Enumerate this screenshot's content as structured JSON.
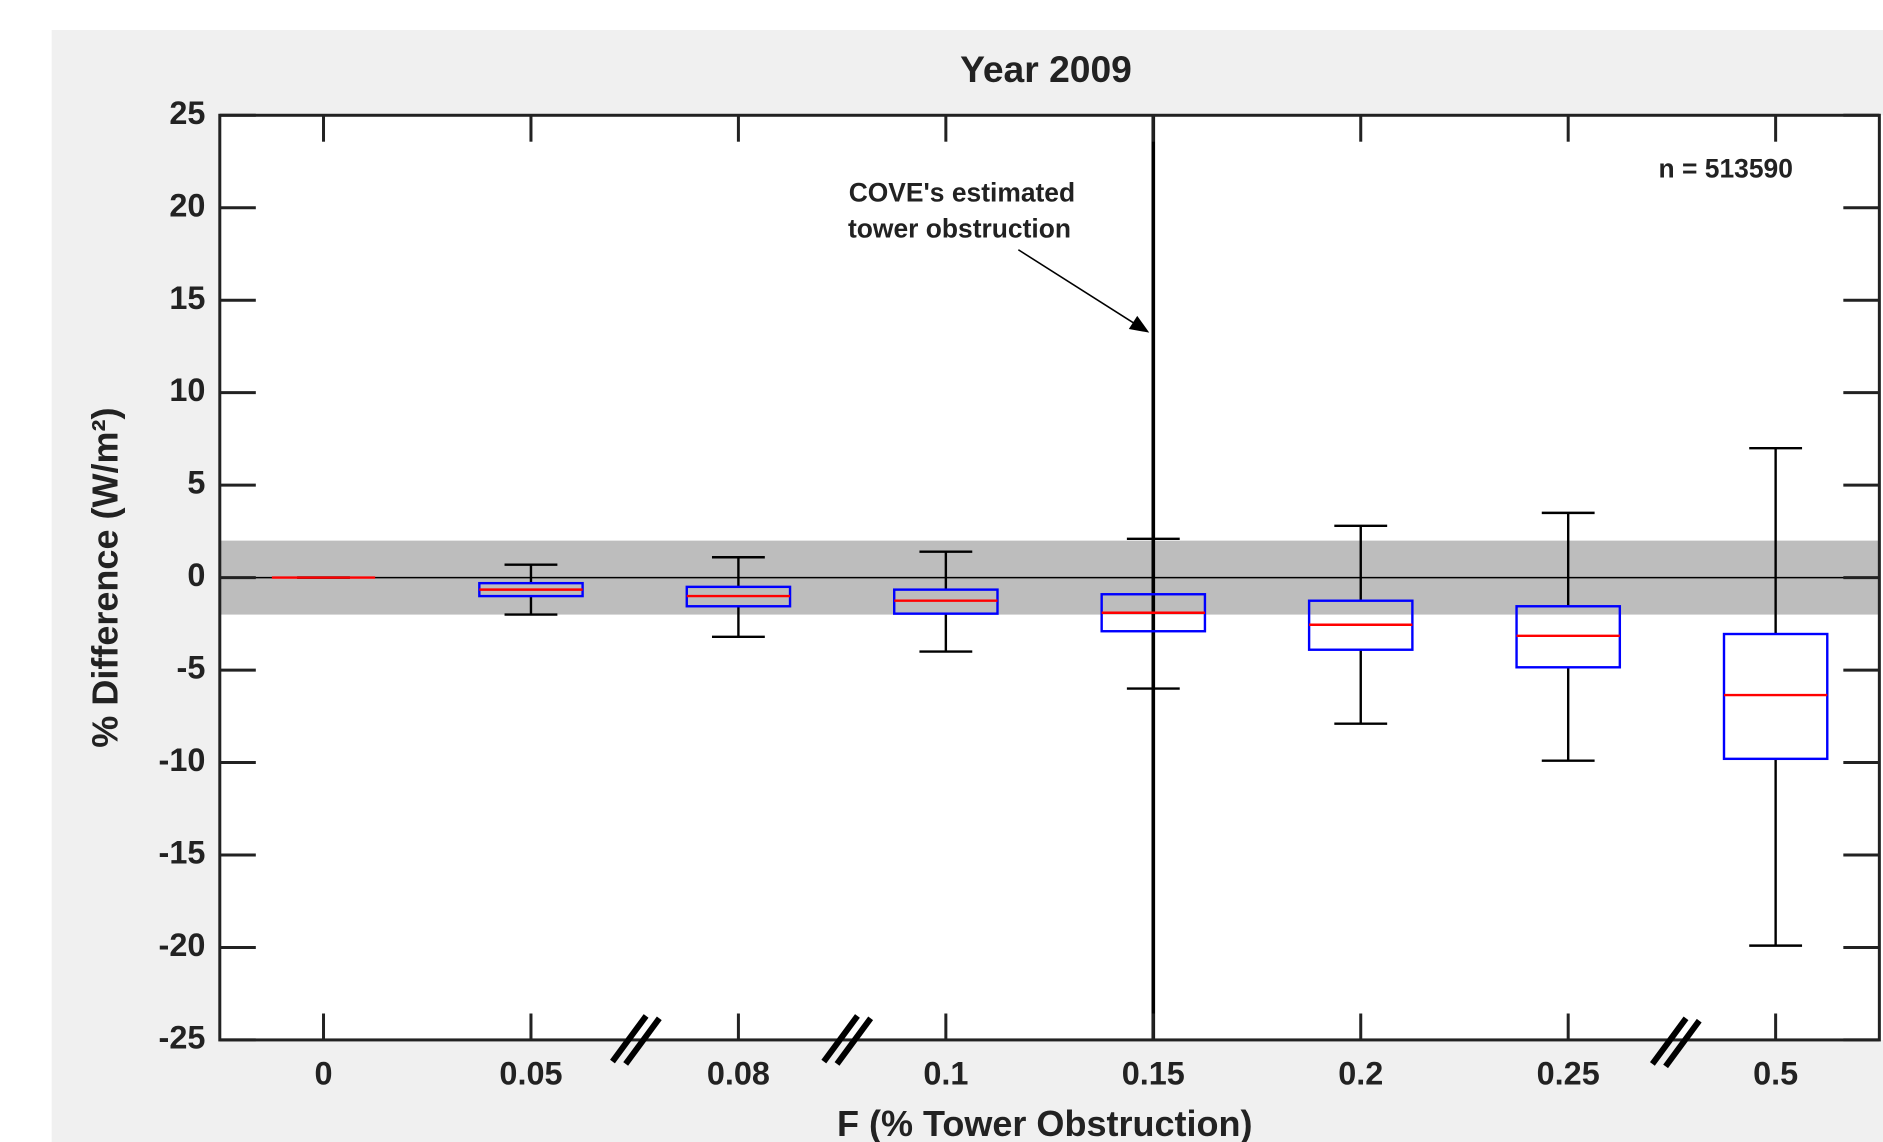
{
  "chart_data": {
    "type": "box",
    "title": "Year 2009",
    "xlabel": "F (% Tower Obstruction)",
    "ylabel": "% Difference (W/m²)",
    "categories": [
      "0",
      "0.05",
      "0.08",
      "0.1",
      "0.15",
      "0.2",
      "0.25",
      "0.5"
    ],
    "boxes": [
      {
        "whisker_low": 0,
        "q1": 0,
        "median": 0,
        "q3": 0,
        "whisker_high": 0
      },
      {
        "whisker_low": -2.0,
        "q1": -1.0,
        "median": -0.65,
        "q3": -0.3,
        "whisker_high": 0.7
      },
      {
        "whisker_low": -3.2,
        "q1": -1.55,
        "median": -1.0,
        "q3": -0.5,
        "whisker_high": 1.1
      },
      {
        "whisker_low": -4.0,
        "q1": -1.95,
        "median": -1.25,
        "q3": -0.65,
        "whisker_high": 1.4
      },
      {
        "whisker_low": -6.0,
        "q1": -2.9,
        "median": -1.9,
        "q3": -0.9,
        "whisker_high": 2.1
      },
      {
        "whisker_low": -7.9,
        "q1": -3.9,
        "median": -2.55,
        "q3": -1.25,
        "whisker_high": 2.8
      },
      {
        "whisker_low": -9.9,
        "q1": -4.85,
        "median": -3.15,
        "q3": -1.55,
        "whisker_high": 3.5
      },
      {
        "whisker_low": -19.9,
        "q1": -9.8,
        "median": -6.35,
        "q3": -3.05,
        "whisker_high": 7.0
      }
    ],
    "box_color": "#0000ff",
    "median_color": "#ff0000",
    "whisker_color": "#000000",
    "ylim": [
      -25,
      25
    ],
    "yticks": [
      -25,
      -20,
      -15,
      -10,
      -5,
      0,
      5,
      10,
      15,
      20,
      25
    ],
    "band": [
      -2,
      2
    ],
    "band_color": "#bdbdbd",
    "hline": 0,
    "reference_line": "0.15",
    "annotation": [
      "COVE's estimated",
      "tower obstruction"
    ],
    "note": "n = 513590"
  }
}
